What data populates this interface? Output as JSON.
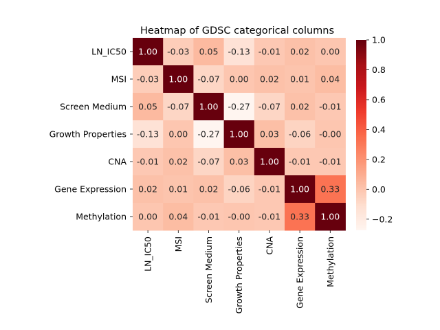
{
  "chart_data": {
    "type": "heatmap",
    "title": "Heatmap of GDSC categorical columns",
    "xlabel": "",
    "ylabel": "",
    "categories": [
      "LN_IC50",
      "MSI",
      "Screen Medium",
      "Growth Properties",
      "CNA",
      "Gene Expression",
      "Methylation"
    ],
    "values": [
      [
        1.0,
        -0.03,
        0.05,
        -0.13,
        -0.01,
        0.02,
        0.0
      ],
      [
        -0.03,
        1.0,
        -0.07,
        0.0,
        0.02,
        0.01,
        0.04
      ],
      [
        0.05,
        -0.07,
        1.0,
        -0.27,
        -0.07,
        0.02,
        -0.01
      ],
      [
        -0.13,
        0.0,
        -0.27,
        1.0,
        0.03,
        -0.06,
        -0.0
      ],
      [
        -0.01,
        0.02,
        -0.07,
        0.03,
        1.0,
        -0.01,
        -0.01
      ],
      [
        0.02,
        0.01,
        0.02,
        -0.06,
        -0.01,
        1.0,
        0.33
      ],
      [
        0.0,
        0.04,
        -0.01,
        -0.0,
        -0.01,
        0.33,
        1.0
      ]
    ],
    "value_format": "0.00",
    "colorbar": {
      "colormap": "Reds",
      "vmin": -0.27,
      "vmax": 1.0,
      "ticks": [
        "−0.2",
        "0.0",
        "0.2",
        "0.4",
        "0.6",
        "0.8",
        "1.0"
      ],
      "tick_values": [
        -0.2,
        0.0,
        0.2,
        0.4,
        0.6,
        0.8,
        1.0
      ]
    },
    "grid": false,
    "legend": "colorbar-right"
  }
}
